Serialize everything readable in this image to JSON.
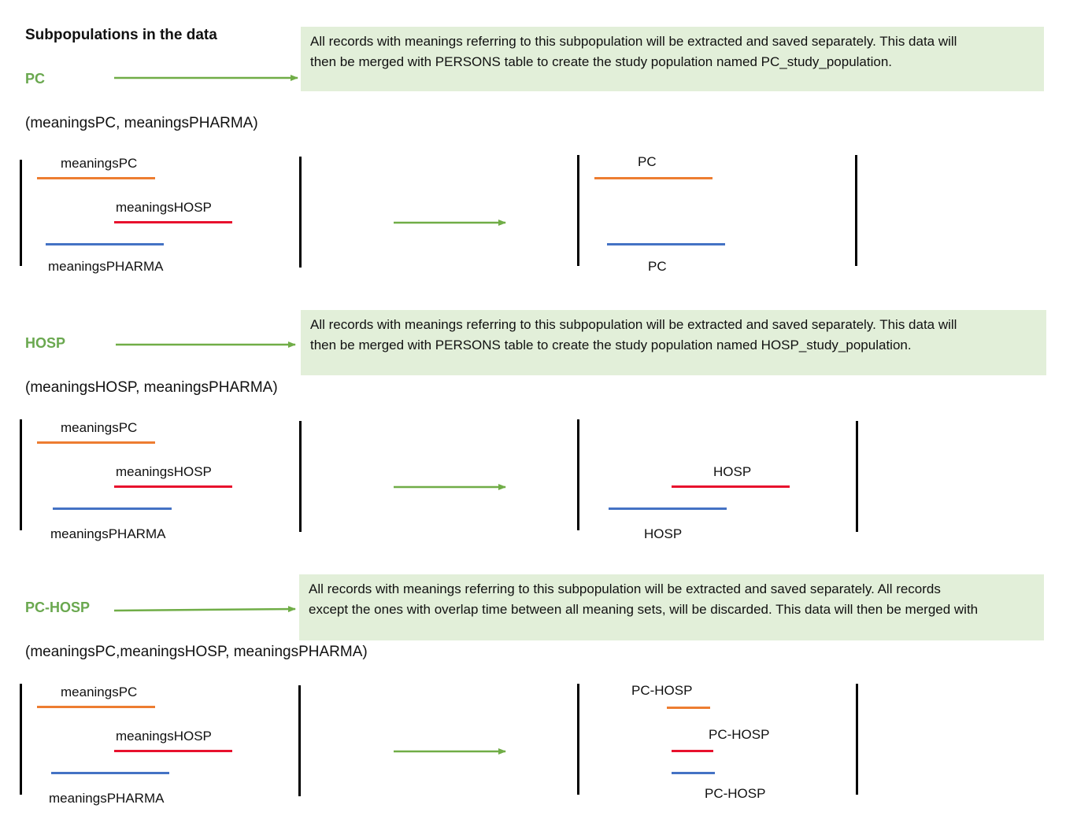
{
  "title": "Subpopulations in the data",
  "colors": {
    "arrow": "#70ad47",
    "subpopulation_label": "#6aa84f",
    "note_background": "#e2efd9",
    "meaningsPC": "#ed7d31",
    "meaningsHOSP": "#e8112d",
    "meaningsPHARMA": "#4472c4"
  },
  "sections": [
    {
      "name": "PC",
      "meanings_list": "(meaningsPC, meaningsPHARMA)",
      "note_lines": [
        "All records with meanings referring to this subpopulation will be extracted and saved separately. This data will",
        "then be merged with PERSONS table to create the study population named PC_study_population."
      ],
      "input_labels": {
        "pc": "meaningsPC",
        "hosp": "meaningsHOSP",
        "pharma": "meaningsPHARMA"
      },
      "output_labels": [
        "PC",
        "PC"
      ]
    },
    {
      "name": "HOSP",
      "meanings_list": "(meaningsHOSP, meaningsPHARMA)",
      "note_lines": [
        "All records with meanings referring to this subpopulation will be extracted and saved separately. This data will",
        "then be merged with PERSONS table to create the study population named HOSP_study_population."
      ],
      "input_labels": {
        "pc": "meaningsPC",
        "hosp": "meaningsHOSP",
        "pharma": "meaningsPHARMA"
      },
      "output_labels": [
        "HOSP",
        "HOSP"
      ]
    },
    {
      "name": "PC-HOSP",
      "meanings_list": "(meaningsPC,meaningsHOSP, meaningsPHARMA)",
      "note_lines": [
        "All records with meanings referring to this subpopulation will be extracted and saved separately. All records",
        "except the ones with overlap time between all meaning sets, will be discarded. This data will then be merged with"
      ],
      "input_labels": {
        "pc": "meaningsPC",
        "hosp": "meaningsHOSP",
        "pharma": "meaningsPHARMA"
      },
      "output_labels": [
        "PC-HOSP",
        "PC-HOSP",
        "PC-HOSP"
      ]
    }
  ]
}
